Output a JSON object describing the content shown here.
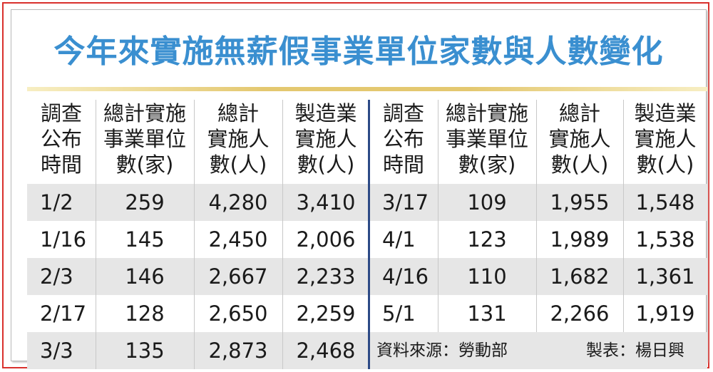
{
  "title": "今年來實施無薪假事業單位家數與人數變化",
  "headers": [
    "調查\n公布\n時間",
    "總計實施\n事業單位\n數(家)",
    "總計\n實施人\n數(人)",
    "製造業\n實施人\n數(人)"
  ],
  "left_rows": [
    [
      "1/2",
      "259",
      "4,280",
      "3,410"
    ],
    [
      "1/16",
      "145",
      "2,450",
      "2,006"
    ],
    [
      "2/3",
      "146",
      "2,667",
      "2,233"
    ],
    [
      "2/17",
      "128",
      "2,650",
      "2,259"
    ],
    [
      "3/3",
      "135",
      "2,873",
      "2,468"
    ]
  ],
  "right_rows": [
    [
      "3/17",
      "109",
      "1,955",
      "1,548"
    ],
    [
      "4/1",
      "123",
      "1,989",
      "1,538"
    ],
    [
      "4/16",
      "110",
      "1,682",
      "1,361"
    ],
    [
      "5/1",
      "131",
      "2,266",
      "1,919"
    ]
  ],
  "footer": {
    "source": "資料來源：勞動部",
    "author": "製表：楊日興"
  },
  "colors": {
    "title": "#3a8fd0",
    "frame": "#d9302c",
    "divider": "#2c4a86",
    "shade": "#e6e6e6"
  }
}
